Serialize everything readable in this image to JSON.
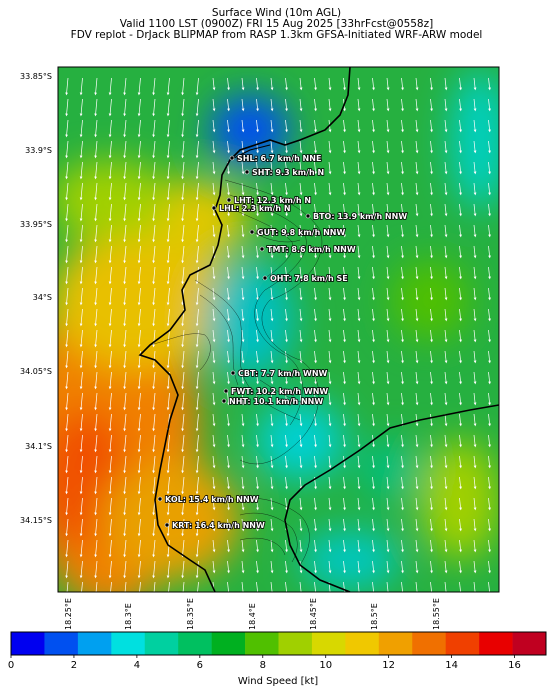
{
  "header": {
    "line1": "Surface Wind (10m AGL)",
    "line2": "Valid 1100 LST (0900Z) FRI 15 Aug 2025 [33hrFcst@0558z]",
    "line3": "FDV replot - DrJack BLIPMAP from RASP 1.3km GFSA-Initiated WRF-ARW model"
  },
  "map": {
    "lat_labels": [
      "33.85°S",
      "33.9°S",
      "33.95°S",
      "34°S",
      "34.05°S",
      "34.1°S",
      "34.15°S"
    ],
    "lon_labels": [
      "18.25°E",
      "18.3°E",
      "18.35°E",
      "18.4°E",
      "18.45°E",
      "18.5°E",
      "18.55°E"
    ],
    "stations": [
      {
        "label": "SHL: 6.7 km/h NNE"
      },
      {
        "label": "SHT: 9.3 km/h N"
      },
      {
        "label": "LHT: 12.3 km/h N"
      },
      {
        "label": "LHL: 2.3 km/h N"
      },
      {
        "label": "BTO: 13.9 km/h NNW"
      },
      {
        "label": "GUT: 9.8 km/h NNW"
      },
      {
        "label": "TMT: 8.6 km/h NNW"
      },
      {
        "label": "OHT: 7.8 km/h SE"
      },
      {
        "label": "CBT: 7.7 km/h WNW"
      },
      {
        "label": "FWT: 10.2 km/h WNW"
      },
      {
        "label": "NHT: 10.1 km/h NNW"
      },
      {
        "label": "KOL: 15.4 km/h NNW"
      },
      {
        "label": "KRT: 16.4 km/h NNW"
      }
    ]
  },
  "colorbar": {
    "ticks": [
      "0",
      "2",
      "4",
      "6",
      "8",
      "10",
      "12",
      "14",
      "16"
    ],
    "label": "Wind Speed [kt]",
    "colors": [
      "#0000f0",
      "#0050f0",
      "#00a0f0",
      "#00e0e0",
      "#00d0a0",
      "#00c060",
      "#00b020",
      "#50c000",
      "#a0d000",
      "#d8d800",
      "#f0c800",
      "#f0a000",
      "#f07000",
      "#f04000",
      "#e80000",
      "#c00020"
    ]
  }
}
